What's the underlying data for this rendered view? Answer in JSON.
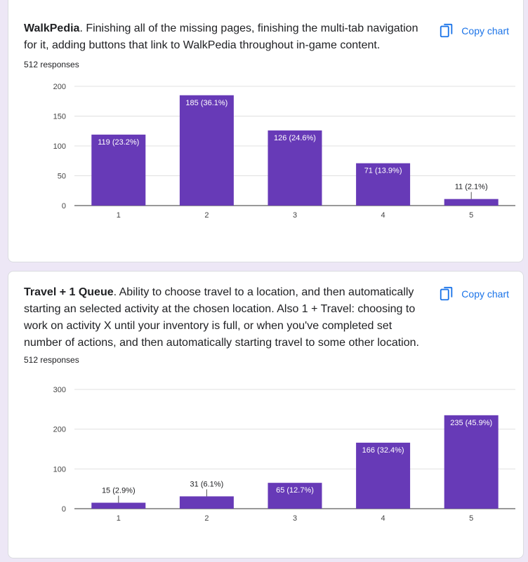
{
  "questions": [
    {
      "title_bold": "WalkPedia",
      "title_rest": ". Finishing all of the missing pages, finishing the multi-tab navigation for it, adding buttons that link to WalkPedia throughout in-game content.",
      "responses": "512 responses",
      "copy_label": "Copy chart"
    },
    {
      "title_bold": "Travel + 1 Queue",
      "title_rest": ". Ability to choose travel to a location, and then automatically starting an selected activity at the chosen location. Also 1 + Travel: choosing to work on activity X until your inventory is full, or when you've completed set number of actions, and then automatically starting travel to some other location.",
      "responses": "512 responses",
      "copy_label": "Copy chart"
    }
  ],
  "colors": {
    "bar": "#673ab7",
    "link": "#1a73e8",
    "grid": "#e0e0e0",
    "axis": "#333333"
  },
  "chart_data": [
    {
      "type": "bar",
      "categories": [
        "1",
        "2",
        "3",
        "4",
        "5"
      ],
      "values": [
        119,
        185,
        126,
        71,
        11
      ],
      "labels": [
        "119 (23.2%)",
        "185 (36.1%)",
        "126 (24.6%)",
        "71 (13.9%)",
        "11 (2.1%)"
      ],
      "yticks": [
        0,
        50,
        100,
        150,
        200
      ],
      "ylim": [
        0,
        200
      ],
      "grid": true
    },
    {
      "type": "bar",
      "categories": [
        "1",
        "2",
        "3",
        "4",
        "5"
      ],
      "values": [
        15,
        31,
        65,
        166,
        235
      ],
      "labels": [
        "15 (2.9%)",
        "31 (6.1%)",
        "65 (12.7%)",
        "166 (32.4%)",
        "235 (45.9%)"
      ],
      "yticks": [
        0,
        100,
        200,
        300
      ],
      "ylim": [
        0,
        300
      ],
      "grid": true
    }
  ]
}
